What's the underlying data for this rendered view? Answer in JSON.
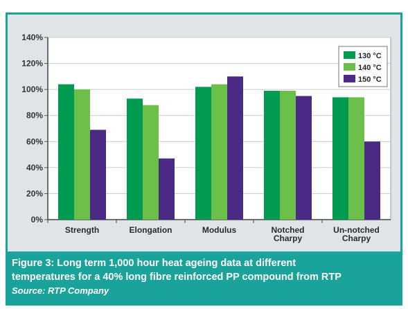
{
  "colors": {
    "series_130": "#009a50",
    "series_140": "#6cc04a",
    "series_150": "#4b2a85",
    "caption_background": "#1aa39a",
    "panel_background": "#dfe4e6"
  },
  "chart_data": {
    "type": "bar",
    "title": "",
    "xlabel": "",
    "ylabel": "",
    "categories": [
      "Strength",
      "Elongation",
      "Modulus",
      "Notched Charpy",
      "Un-notched Charpy"
    ],
    "category_lines": [
      [
        "Strength"
      ],
      [
        "Elongation"
      ],
      [
        "Modulus"
      ],
      [
        "Notched",
        "Charpy"
      ],
      [
        "Un-notched",
        "Charpy"
      ]
    ],
    "series": [
      {
        "name": "130 °C",
        "color": "#009a50",
        "values": [
          104,
          93,
          102,
          99,
          94
        ]
      },
      {
        "name": "140 °C",
        "color": "#6cc04a",
        "values": [
          100,
          88,
          104,
          99,
          94
        ]
      },
      {
        "name": "150 °C",
        "color": "#4b2a85",
        "values": [
          69,
          47,
          110,
          95,
          60
        ]
      }
    ],
    "ylim": [
      0,
      140
    ],
    "yticks": [
      "0%",
      "20%",
      "40%",
      "60%",
      "80%",
      "100%",
      "120%",
      "140%"
    ],
    "grid": true,
    "legend_position": "top-right"
  },
  "caption": {
    "line1": "Figure 3: Long term 1,000 hour heat ageing data at different",
    "line2": "temperatures for a 40% long fibre reinforced PP compound from RTP",
    "source": "Source: RTP Company"
  }
}
